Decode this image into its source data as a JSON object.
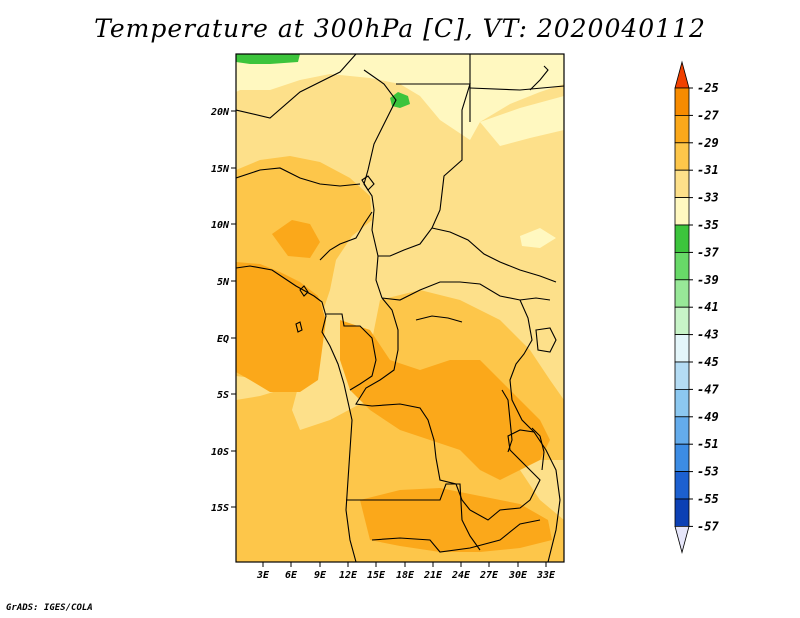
{
  "title": "Temperature at 300hPa [C], VT: 2020040112",
  "credit": "GrADS: IGES/COLA",
  "map": {
    "region": "Central Africa",
    "lon_ticks": [
      "3E",
      "6E",
      "9E",
      "12E",
      "15E",
      "18E",
      "21E",
      "24E",
      "27E",
      "30E",
      "33E"
    ],
    "lat_ticks": [
      "20N",
      "15N",
      "10N",
      "5N",
      "EQ",
      "5S",
      "10S",
      "15S"
    ]
  },
  "colorbar": {
    "labels": [
      "-25",
      "-27",
      "-29",
      "-31",
      "-33",
      "-35",
      "-37",
      "-39",
      "-41",
      "-43",
      "-45",
      "-47",
      "-49",
      "-51",
      "-53",
      "-55",
      "-57"
    ],
    "colors": [
      "#f06000",
      "#f78b00",
      "#fba81a",
      "#fdc64a",
      "#fde08a",
      "#fff8c0",
      "#3cc43c",
      "#68d968",
      "#98e898",
      "#c8f4c8",
      "#e4f6fa",
      "#b4dcf4",
      "#8cc8f0",
      "#64acec",
      "#3c8ce4",
      "#1c60d0",
      "#0c40b4",
      "#081880",
      "#e8e8ff"
    ],
    "top_arrow_color": "#f04000",
    "bottom_arrow_color": "#e6e6fa"
  },
  "chart_data": {
    "type": "heatmap",
    "title": "Temperature at 300hPa [C], VT: 2020040112",
    "variable": "temperature_300hPa",
    "units": "C",
    "valid_time": "2020040112",
    "x_ticks": [
      "3E",
      "6E",
      "9E",
      "12E",
      "15E",
      "18E",
      "21E",
      "24E",
      "27E",
      "30E",
      "33E"
    ],
    "y_ticks": [
      "20N",
      "15N",
      "10N",
      "5N",
      "EQ",
      "5S",
      "10S",
      "15S"
    ],
    "levels": [
      -25,
      -27,
      -29,
      -31,
      -33,
      -35,
      -37,
      -39,
      -41,
      -43,
      -45,
      -47,
      -49,
      -51,
      -53,
      -55,
      -57
    ]
  }
}
